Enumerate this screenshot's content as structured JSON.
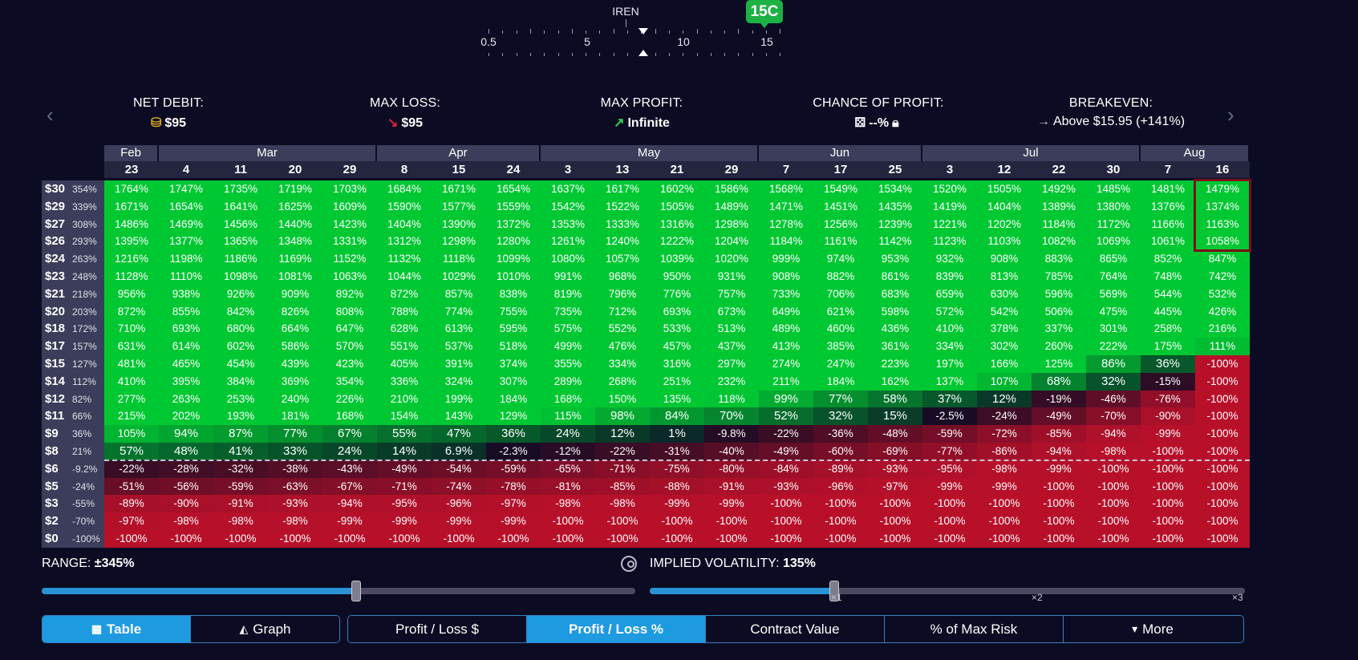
{
  "strike": {
    "symbol": "IREN",
    "selected_badge": "15C",
    "tick_labels": [
      "0.5",
      "5",
      "10",
      "15"
    ]
  },
  "stats": {
    "net_debit": {
      "label": "NET DEBIT:",
      "value": "$95",
      "icon": "coins-icon"
    },
    "max_loss": {
      "label": "MAX LOSS:",
      "value": "$95",
      "icon": "arrow-down-right-icon"
    },
    "max_profit": {
      "label": "MAX PROFIT:",
      "value": "Infinite",
      "icon": "arrow-up-right-icon"
    },
    "chance_of_profit": {
      "label": "CHANCE OF PROFIT:",
      "value": "--%",
      "icon": "dice-icon"
    },
    "breakeven": {
      "label": "BREAKEVEN:",
      "value": "Above $15.95 (+141%)",
      "icon": "arrow-right-icon"
    }
  },
  "nav": {
    "prev": "‹",
    "next": "›"
  },
  "table": {
    "months": [
      {
        "name": "Feb",
        "span": 1
      },
      {
        "name": "Mar",
        "span": 4
      },
      {
        "name": "Apr",
        "span": 3
      },
      {
        "name": "May",
        "span": 4
      },
      {
        "name": "Jun",
        "span": 3
      },
      {
        "name": "Jul",
        "span": 4
      },
      {
        "name": "Aug",
        "span": 2
      }
    ],
    "dates": [
      "23",
      "4",
      "11",
      "20",
      "29",
      "8",
      "15",
      "24",
      "3",
      "13",
      "21",
      "29",
      "7",
      "17",
      "25",
      "3",
      "12",
      "22",
      "30",
      "7",
      "16"
    ],
    "prices": [
      {
        "price": "$30",
        "change": "354%"
      },
      {
        "price": "$29",
        "change": "339%"
      },
      {
        "price": "$27",
        "change": "308%"
      },
      {
        "price": "$26",
        "change": "293%"
      },
      {
        "price": "$24",
        "change": "263%"
      },
      {
        "price": "$23",
        "change": "248%"
      },
      {
        "price": "$21",
        "change": "218%"
      },
      {
        "price": "$20",
        "change": "203%"
      },
      {
        "price": "$18",
        "change": "172%"
      },
      {
        "price": "$17",
        "change": "157%"
      },
      {
        "price": "$15",
        "change": "127%"
      },
      {
        "price": "$14",
        "change": "112%"
      },
      {
        "price": "$12",
        "change": "82%"
      },
      {
        "price": "$11",
        "change": "66%"
      },
      {
        "price": "$9",
        "change": "36%"
      },
      {
        "price": "$8",
        "change": "21%"
      },
      {
        "price": "$6",
        "change": "-9.2%"
      },
      {
        "price": "$5",
        "change": "-24%"
      },
      {
        "price": "$3",
        "change": "-55%"
      },
      {
        "price": "$2",
        "change": "-70%"
      },
      {
        "price": "$0",
        "change": "-100%"
      }
    ],
    "rows": [
      [
        "1764%",
        "1747%",
        "1735%",
        "1719%",
        "1703%",
        "1684%",
        "1671%",
        "1654%",
        "1637%",
        "1617%",
        "1602%",
        "1586%",
        "1568%",
        "1549%",
        "1534%",
        "1520%",
        "1505%",
        "1492%",
        "1485%",
        "1481%",
        "1479%"
      ],
      [
        "1671%",
        "1654%",
        "1641%",
        "1625%",
        "1609%",
        "1590%",
        "1577%",
        "1559%",
        "1542%",
        "1522%",
        "1505%",
        "1489%",
        "1471%",
        "1451%",
        "1435%",
        "1419%",
        "1404%",
        "1389%",
        "1380%",
        "1376%",
        "1374%"
      ],
      [
        "1486%",
        "1469%",
        "1456%",
        "1440%",
        "1423%",
        "1404%",
        "1390%",
        "1372%",
        "1353%",
        "1333%",
        "1316%",
        "1298%",
        "1278%",
        "1256%",
        "1239%",
        "1221%",
        "1202%",
        "1184%",
        "1172%",
        "1166%",
        "1163%"
      ],
      [
        "1395%",
        "1377%",
        "1365%",
        "1348%",
        "1331%",
        "1312%",
        "1298%",
        "1280%",
        "1261%",
        "1240%",
        "1222%",
        "1204%",
        "1184%",
        "1161%",
        "1142%",
        "1123%",
        "1103%",
        "1082%",
        "1069%",
        "1061%",
        "1058%"
      ],
      [
        "1216%",
        "1198%",
        "1186%",
        "1169%",
        "1152%",
        "1132%",
        "1118%",
        "1099%",
        "1080%",
        "1057%",
        "1039%",
        "1020%",
        "999%",
        "974%",
        "953%",
        "932%",
        "908%",
        "883%",
        "865%",
        "852%",
        "847%"
      ],
      [
        "1128%",
        "1110%",
        "1098%",
        "1081%",
        "1063%",
        "1044%",
        "1029%",
        "1010%",
        "991%",
        "968%",
        "950%",
        "931%",
        "908%",
        "882%",
        "861%",
        "839%",
        "813%",
        "785%",
        "764%",
        "748%",
        "742%"
      ],
      [
        "956%",
        "938%",
        "926%",
        "909%",
        "892%",
        "872%",
        "857%",
        "838%",
        "819%",
        "796%",
        "776%",
        "757%",
        "733%",
        "706%",
        "683%",
        "659%",
        "630%",
        "596%",
        "569%",
        "544%",
        "532%"
      ],
      [
        "872%",
        "855%",
        "842%",
        "826%",
        "808%",
        "788%",
        "774%",
        "755%",
        "735%",
        "712%",
        "693%",
        "673%",
        "649%",
        "621%",
        "598%",
        "572%",
        "542%",
        "506%",
        "475%",
        "445%",
        "426%"
      ],
      [
        "710%",
        "693%",
        "680%",
        "664%",
        "647%",
        "628%",
        "613%",
        "595%",
        "575%",
        "552%",
        "533%",
        "513%",
        "489%",
        "460%",
        "436%",
        "410%",
        "378%",
        "337%",
        "301%",
        "258%",
        "216%"
      ],
      [
        "631%",
        "614%",
        "602%",
        "586%",
        "570%",
        "551%",
        "537%",
        "518%",
        "499%",
        "476%",
        "457%",
        "437%",
        "413%",
        "385%",
        "361%",
        "334%",
        "302%",
        "260%",
        "222%",
        "175%",
        "111%"
      ],
      [
        "481%",
        "465%",
        "454%",
        "439%",
        "423%",
        "405%",
        "391%",
        "374%",
        "355%",
        "334%",
        "316%",
        "297%",
        "274%",
        "247%",
        "223%",
        "197%",
        "166%",
        "125%",
        "86%",
        "36%",
        "-100%"
      ],
      [
        "410%",
        "395%",
        "384%",
        "369%",
        "354%",
        "336%",
        "324%",
        "307%",
        "289%",
        "268%",
        "251%",
        "232%",
        "211%",
        "184%",
        "162%",
        "137%",
        "107%",
        "68%",
        "32%",
        "-15%",
        "-100%"
      ],
      [
        "277%",
        "263%",
        "253%",
        "240%",
        "226%",
        "210%",
        "199%",
        "184%",
        "168%",
        "150%",
        "135%",
        "118%",
        "99%",
        "77%",
        "58%",
        "37%",
        "12%",
        "-19%",
        "-46%",
        "-76%",
        "-100%"
      ],
      [
        "215%",
        "202%",
        "193%",
        "181%",
        "168%",
        "154%",
        "143%",
        "129%",
        "115%",
        "98%",
        "84%",
        "70%",
        "52%",
        "32%",
        "15%",
        "-2.5%",
        "-24%",
        "-49%",
        "-70%",
        "-90%",
        "-100%"
      ],
      [
        "105%",
        "94%",
        "87%",
        "77%",
        "67%",
        "55%",
        "47%",
        "36%",
        "24%",
        "12%",
        "1%",
        "-9.8%",
        "-22%",
        "-36%",
        "-48%",
        "-59%",
        "-72%",
        "-85%",
        "-94%",
        "-99%",
        "-100%"
      ],
      [
        "57%",
        "48%",
        "41%",
        "33%",
        "24%",
        "14%",
        "6.9%",
        "-2.3%",
        "-12%",
        "-22%",
        "-31%",
        "-40%",
        "-49%",
        "-60%",
        "-69%",
        "-77%",
        "-86%",
        "-94%",
        "-98%",
        "-100%",
        "-100%"
      ],
      [
        "-22%",
        "-28%",
        "-32%",
        "-38%",
        "-43%",
        "-49%",
        "-54%",
        "-59%",
        "-65%",
        "-71%",
        "-75%",
        "-80%",
        "-84%",
        "-89%",
        "-93%",
        "-95%",
        "-98%",
        "-99%",
        "-100%",
        "-100%",
        "-100%"
      ],
      [
        "-51%",
        "-56%",
        "-59%",
        "-63%",
        "-67%",
        "-71%",
        "-74%",
        "-78%",
        "-81%",
        "-85%",
        "-88%",
        "-91%",
        "-93%",
        "-96%",
        "-97%",
        "-99%",
        "-99%",
        "-100%",
        "-100%",
        "-100%",
        "-100%"
      ],
      [
        "-89%",
        "-90%",
        "-91%",
        "-93%",
        "-94%",
        "-95%",
        "-96%",
        "-97%",
        "-98%",
        "-98%",
        "-99%",
        "-99%",
        "-100%",
        "-100%",
        "-100%",
        "-100%",
        "-100%",
        "-100%",
        "-100%",
        "-100%",
        "-100%"
      ],
      [
        "-97%",
        "-98%",
        "-98%",
        "-98%",
        "-99%",
        "-99%",
        "-99%",
        "-99%",
        "-100%",
        "-100%",
        "-100%",
        "-100%",
        "-100%",
        "-100%",
        "-100%",
        "-100%",
        "-100%",
        "-100%",
        "-100%",
        "-100%",
        "-100%"
      ],
      [
        "-100%",
        "-100%",
        "-100%",
        "-100%",
        "-100%",
        "-100%",
        "-100%",
        "-100%",
        "-100%",
        "-100%",
        "-100%",
        "-100%",
        "-100%",
        "-100%",
        "-100%",
        "-100%",
        "-100%",
        "-100%",
        "-100%",
        "-100%",
        "-100%"
      ]
    ],
    "colors": {
      "profit_strong": "#00c832",
      "loss_strong": "#b8102a",
      "neutral": "#0b0c23"
    }
  },
  "range": {
    "label": "RANGE:",
    "value": "±345%",
    "fill_fraction": 0.53
  },
  "iv": {
    "label": "IMPLIED VOLATILITY:",
    "value": "135%",
    "fill_fraction": 0.31,
    "marks": [
      "×1",
      "×2",
      "×3"
    ]
  },
  "view_buttons": [
    {
      "label": "Table",
      "icon": "table-icon",
      "active": true
    },
    {
      "label": "Graph",
      "icon": "chart-icon",
      "active": false
    }
  ],
  "metric_buttons": [
    {
      "label": "Profit / Loss $",
      "active": false
    },
    {
      "label": "Profit / Loss %",
      "active": true
    },
    {
      "label": "Contract Value",
      "active": false
    },
    {
      "label": "% of Max Risk",
      "active": false
    },
    {
      "label": "More",
      "icon": "caret-down-icon",
      "active": false
    }
  ]
}
